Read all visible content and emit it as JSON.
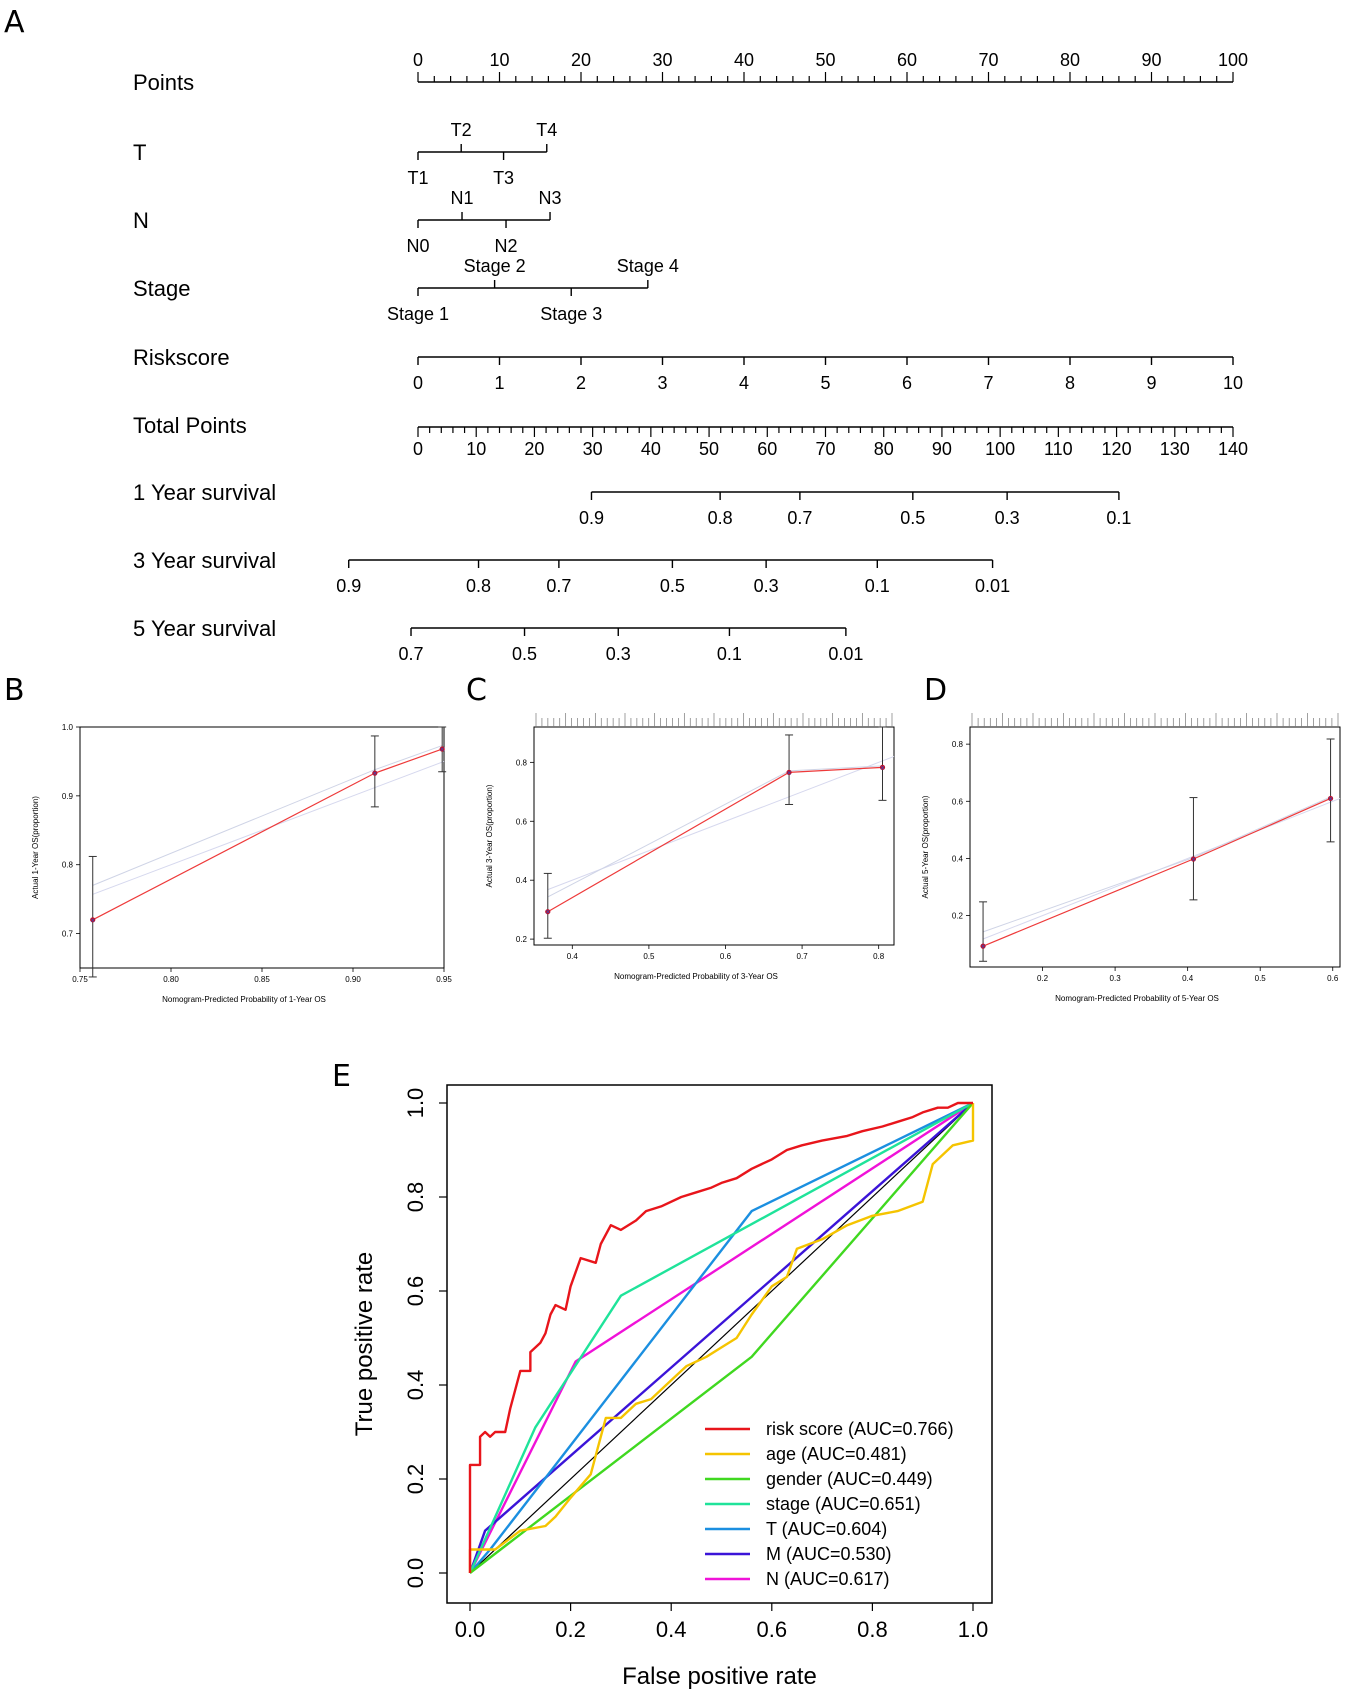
{
  "panels": {
    "a": "A",
    "b": "B",
    "c": "C",
    "d": "D",
    "e": "E"
  },
  "nomogram": {
    "rows": [
      {
        "name": "Points",
        "kind": "scale",
        "min": 0,
        "max": 100,
        "ticks": [
          {
            "v": 0,
            "t": "0"
          },
          {
            "v": 10,
            "t": "10"
          },
          {
            "v": 20,
            "t": "20"
          },
          {
            "v": 30,
            "t": "30"
          },
          {
            "v": 40,
            "t": "40"
          },
          {
            "v": 50,
            "t": "50"
          },
          {
            "v": 60,
            "t": "60"
          },
          {
            "v": 70,
            "t": "70"
          },
          {
            "v": 80,
            "t": "80"
          },
          {
            "v": 90,
            "t": "90"
          },
          {
            "v": 100,
            "t": "100"
          }
        ]
      },
      {
        "name": "T",
        "kind": "factor",
        "ticks": [
          {
            "v": 0,
            "t": "T1",
            "pos": "below"
          },
          {
            "v": 5.3,
            "t": "T2",
            "pos": "above"
          },
          {
            "v": 10.5,
            "t": "T3",
            "pos": "below"
          },
          {
            "v": 15.8,
            "t": "T4",
            "pos": "above"
          }
        ]
      },
      {
        "name": "N",
        "kind": "factor",
        "ticks": [
          {
            "v": 0,
            "t": "N0",
            "pos": "below"
          },
          {
            "v": 5.4,
            "t": "N1",
            "pos": "above"
          },
          {
            "v": 10.8,
            "t": "N2",
            "pos": "below"
          },
          {
            "v": 16.2,
            "t": "N3",
            "pos": "above"
          }
        ]
      },
      {
        "name": "Stage",
        "kind": "factor",
        "ticks": [
          {
            "v": 0,
            "t": "Stage 1",
            "pos": "below"
          },
          {
            "v": 9.4,
            "t": "Stage 2",
            "pos": "above"
          },
          {
            "v": 18.8,
            "t": "Stage 3",
            "pos": "below"
          },
          {
            "v": 28.2,
            "t": "Stage 4",
            "pos": "above"
          }
        ]
      },
      {
        "name": "Riskscore",
        "kind": "values",
        "ticks": [
          {
            "v": 0,
            "t": "0"
          },
          {
            "v": 10,
            "t": "1"
          },
          {
            "v": 20,
            "t": "2"
          },
          {
            "v": 30,
            "t": "3"
          },
          {
            "v": 40,
            "t": "4"
          },
          {
            "v": 50,
            "t": "5"
          },
          {
            "v": 60,
            "t": "6"
          },
          {
            "v": 70,
            "t": "7"
          },
          {
            "v": 80,
            "t": "8"
          },
          {
            "v": 90,
            "t": "9"
          },
          {
            "v": 100,
            "t": "10"
          }
        ]
      },
      {
        "name": "Total Points",
        "kind": "total",
        "min": 0,
        "max": 140,
        "ticks": [
          {
            "v": 0,
            "t": "0"
          },
          {
            "v": 10,
            "t": "10"
          },
          {
            "v": 20,
            "t": "20"
          },
          {
            "v": 30,
            "t": "30"
          },
          {
            "v": 40,
            "t": "40"
          },
          {
            "v": 50,
            "t": "50"
          },
          {
            "v": 60,
            "t": "60"
          },
          {
            "v": 70,
            "t": "70"
          },
          {
            "v": 80,
            "t": "80"
          },
          {
            "v": 90,
            "t": "90"
          },
          {
            "v": 100,
            "t": "100"
          },
          {
            "v": 110,
            "t": "110"
          },
          {
            "v": 120,
            "t": "120"
          },
          {
            "v": 130,
            "t": "130"
          },
          {
            "v": 140,
            "t": "140"
          }
        ]
      },
      {
        "name": "1 Year survival",
        "kind": "survival",
        "ticks": [
          {
            "v": 29.8,
            "t": "0.9"
          },
          {
            "v": 51.9,
            "t": "0.8"
          },
          {
            "v": 65.6,
            "t": "0.7"
          },
          {
            "v": 85.0,
            "t": "0.5"
          },
          {
            "v": 101.2,
            "t": "0.3"
          },
          {
            "v": 120.4,
            "t": "0.1"
          }
        ]
      },
      {
        "name": "3 Year survival",
        "kind": "survival",
        "ticks": [
          {
            "v": -11.9,
            "t": "0.9"
          },
          {
            "v": 10.4,
            "t": "0.8"
          },
          {
            "v": 24.2,
            "t": "0.7"
          },
          {
            "v": 43.7,
            "t": "0.5"
          },
          {
            "v": 59.8,
            "t": "0.3"
          },
          {
            "v": 78.9,
            "t": "0.1"
          },
          {
            "v": 98.7,
            "t": "0.01"
          }
        ]
      },
      {
        "name": "5 Year survival",
        "kind": "survival",
        "ticks": [
          {
            "v": -1.2,
            "t": "0.7"
          },
          {
            "v": 18.3,
            "t": "0.5"
          },
          {
            "v": 34.4,
            "t": "0.3"
          },
          {
            "v": 53.5,
            "t": "0.1"
          },
          {
            "v": 73.5,
            "t": "0.01"
          }
        ]
      }
    ]
  },
  "chart_data": [
    {
      "type": "scatter",
      "panel": "B",
      "xlabel": "Nomogram-Predicted Probability of 1-Year OS",
      "ylabel": "Actual 1-Year OS(proportion)",
      "xlim": [
        0.75,
        0.95
      ],
      "ylim": [
        0.65,
        1.0
      ],
      "xticks": [
        "0.75",
        "0.80",
        "0.85",
        "0.90",
        "0.95"
      ],
      "yticks": [
        "0.7",
        "0.8",
        "0.9",
        "1.0"
      ],
      "x": [
        0.757,
        0.912,
        0.949
      ],
      "y": [
        0.72,
        0.933,
        0.968
      ],
      "err_low": [
        0.637,
        0.884,
        0.935
      ],
      "err_high": [
        0.812,
        0.987,
        1.0
      ],
      "ideal": [
        [
          0.757,
          0.757
        ],
        [
          0.95,
          0.95
        ]
      ],
      "rug": false
    },
    {
      "type": "scatter",
      "panel": "C",
      "xlabel": "Nomogram-Predicted Probability of 3-Year OS",
      "ylabel": "Actual 3-Year OS(proportion)",
      "xlim": [
        0.35,
        0.82
      ],
      "ylim": [
        0.18,
        0.92
      ],
      "xticks": [
        "0.4",
        "0.5",
        "0.6",
        "0.7",
        "0.8"
      ],
      "yticks": [
        "0.2",
        "0.4",
        "0.6",
        "0.8"
      ],
      "x": [
        0.368,
        0.683,
        0.805
      ],
      "y": [
        0.293,
        0.766,
        0.783
      ],
      "err_low": [
        0.203,
        0.657,
        0.671
      ],
      "err_high": [
        0.423,
        0.893,
        0.92
      ],
      "ideal": [
        [
          0.368,
          0.368
        ],
        [
          0.82,
          0.82
        ]
      ],
      "rug": true
    },
    {
      "type": "scatter",
      "panel": "D",
      "xlabel": "Nomogram-Predicted Probability of 5-Year OS",
      "ylabel": "Actual 5-Year OS(proportion)",
      "xlim": [
        0.1,
        0.61
      ],
      "ylim": [
        0.02,
        0.86
      ],
      "xticks": [
        "0.2",
        "0.3",
        "0.4",
        "0.5",
        "0.6"
      ],
      "yticks": [
        "0.2",
        "0.4",
        "0.6",
        "0.8"
      ],
      "x": [
        0.118,
        0.408,
        0.597
      ],
      "y": [
        0.093,
        0.398,
        0.61
      ],
      "err_low": [
        0.04,
        0.255,
        0.458
      ],
      "err_high": [
        0.248,
        0.613,
        0.818
      ],
      "ideal": [
        [
          0.118,
          0.118
        ],
        [
          0.61,
          0.61
        ]
      ],
      "rug": true
    },
    {
      "type": "line",
      "panel": "E",
      "xlabel": "False positive rate",
      "ylabel": "True positive rate",
      "xlim": [
        0,
        1
      ],
      "ylim": [
        0,
        1
      ],
      "xticks": [
        "0.0",
        "0.2",
        "0.4",
        "0.6",
        "0.8",
        "1.0"
      ],
      "yticks": [
        "0.0",
        "0.2",
        "0.4",
        "0.6",
        "0.8",
        "1.0"
      ],
      "legend_position": "bottom-right",
      "series": [
        {
          "name": "risk score (AUC=0.766)",
          "color": "#e8151b",
          "points": [
            [
              0,
              0
            ],
            [
              0,
              0.06
            ],
            [
              0,
              0.23
            ],
            [
              0.02,
              0.23
            ],
            [
              0.02,
              0.29
            ],
            [
              0.03,
              0.3
            ],
            [
              0.04,
              0.29
            ],
            [
              0.05,
              0.3
            ],
            [
              0.07,
              0.3
            ],
            [
              0.08,
              0.35
            ],
            [
              0.09,
              0.39
            ],
            [
              0.1,
              0.43
            ],
            [
              0.12,
              0.43
            ],
            [
              0.12,
              0.47
            ],
            [
              0.14,
              0.49
            ],
            [
              0.15,
              0.51
            ],
            [
              0.16,
              0.55
            ],
            [
              0.17,
              0.57
            ],
            [
              0.19,
              0.56
            ],
            [
              0.2,
              0.61
            ],
            [
              0.21,
              0.64
            ],
            [
              0.22,
              0.67
            ],
            [
              0.25,
              0.66
            ],
            [
              0.26,
              0.7
            ],
            [
              0.28,
              0.74
            ],
            [
              0.3,
              0.73
            ],
            [
              0.33,
              0.75
            ],
            [
              0.35,
              0.77
            ],
            [
              0.38,
              0.78
            ],
            [
              0.42,
              0.8
            ],
            [
              0.45,
              0.81
            ],
            [
              0.48,
              0.82
            ],
            [
              0.5,
              0.83
            ],
            [
              0.53,
              0.84
            ],
            [
              0.56,
              0.86
            ],
            [
              0.6,
              0.88
            ],
            [
              0.63,
              0.9
            ],
            [
              0.66,
              0.91
            ],
            [
              0.7,
              0.92
            ],
            [
              0.75,
              0.93
            ],
            [
              0.78,
              0.94
            ],
            [
              0.82,
              0.95
            ],
            [
              0.85,
              0.96
            ],
            [
              0.88,
              0.97
            ],
            [
              0.9,
              0.98
            ],
            [
              0.93,
              0.99
            ],
            [
              0.95,
              0.99
            ],
            [
              0.97,
              1.0
            ],
            [
              1,
              1
            ]
          ]
        },
        {
          "name": "age (AUC=0.481)",
          "color": "#f5c400",
          "points": [
            [
              0,
              0
            ],
            [
              0,
              0.05
            ],
            [
              0.05,
              0.05
            ],
            [
              0.1,
              0.09
            ],
            [
              0.15,
              0.1
            ],
            [
              0.17,
              0.12
            ],
            [
              0.2,
              0.16
            ],
            [
              0.24,
              0.21
            ],
            [
              0.27,
              0.33
            ],
            [
              0.3,
              0.33
            ],
            [
              0.33,
              0.36
            ],
            [
              0.36,
              0.37
            ],
            [
              0.4,
              0.41
            ],
            [
              0.43,
              0.44
            ],
            [
              0.47,
              0.46
            ],
            [
              0.5,
              0.48
            ],
            [
              0.53,
              0.5
            ],
            [
              0.56,
              0.55
            ],
            [
              0.6,
              0.61
            ],
            [
              0.63,
              0.63
            ],
            [
              0.65,
              0.69
            ],
            [
              0.7,
              0.71
            ],
            [
              0.75,
              0.74
            ],
            [
              0.8,
              0.76
            ],
            [
              0.85,
              0.77
            ],
            [
              0.9,
              0.79
            ],
            [
              0.92,
              0.87
            ],
            [
              0.96,
              0.91
            ],
            [
              1,
              0.92
            ],
            [
              1,
              1
            ]
          ]
        },
        {
          "name": "gender (AUC=0.449)",
          "color": "#40d820",
          "points": [
            [
              0,
              0
            ],
            [
              0.56,
              0.46
            ],
            [
              1,
              1
            ]
          ]
        },
        {
          "name": "stage (AUC=0.651)",
          "color": "#1fe39a",
          "points": [
            [
              0,
              0
            ],
            [
              0.13,
              0.31
            ],
            [
              0.3,
              0.59
            ],
            [
              1,
              1
            ]
          ]
        },
        {
          "name": "T (AUC=0.604)",
          "color": "#1b8fe0",
          "points": [
            [
              0,
              0
            ],
            [
              0.04,
              0.05
            ],
            [
              0.56,
              0.77
            ],
            [
              1,
              1
            ]
          ]
        },
        {
          "name": "M (AUC=0.530)",
          "color": "#3b14d8",
          "points": [
            [
              0,
              0
            ],
            [
              0.03,
              0.09
            ],
            [
              1,
              1
            ]
          ]
        },
        {
          "name": "N (AUC=0.617)",
          "color": "#f012d8",
          "points": [
            [
              0,
              0
            ],
            [
              0.21,
              0.45
            ],
            [
              1,
              1
            ]
          ]
        }
      ]
    }
  ]
}
